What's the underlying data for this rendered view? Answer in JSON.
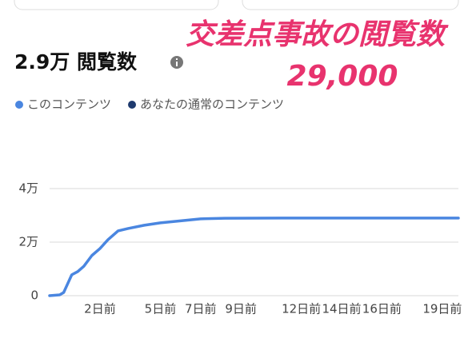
{
  "chart_data": {
    "type": "line",
    "title": "2.9万 閲覧数",
    "annotations": [
      "交差点事故の閲覧数",
      "29,000"
    ],
    "x": [
      -0.5,
      0,
      0.2,
      0.4,
      0.6,
      0.9,
      1.2,
      1.6,
      2,
      2.4,
      2.9,
      3.4,
      4.2,
      5,
      6.2,
      7,
      8.2,
      11,
      15,
      19.8
    ],
    "series": [
      {
        "name": "このコンテンツ",
        "color": "#4a86e0",
        "values": [
          0,
          300,
          1200,
          4500,
          7800,
          9000,
          11000,
          15000,
          17600,
          20900,
          24200,
          25100,
          26300,
          27200,
          28100,
          28700,
          28900,
          29000,
          29000,
          29000
        ]
      },
      {
        "name": "あなたの通常のコンテンツ",
        "color": "#1e3a6e",
        "values": [
          null,
          null,
          null,
          null,
          null,
          null,
          null,
          null,
          null,
          null,
          null,
          null,
          null,
          null,
          null,
          null,
          null,
          null,
          null,
          null
        ]
      }
    ],
    "xlim": [
      -0.5,
      19.8
    ],
    "xticks": [
      {
        "value": 2,
        "label": "2日前"
      },
      {
        "value": 5,
        "label": "5日前"
      },
      {
        "value": 7,
        "label": "7日前"
      },
      {
        "value": 9,
        "label": "9日前"
      },
      {
        "value": 12,
        "label": "12日前"
      },
      {
        "value": 14,
        "label": "14日前"
      },
      {
        "value": 16,
        "label": "16日前"
      },
      {
        "value": 19,
        "label": "19日前"
      }
    ],
    "ylim": [
      0,
      40000
    ],
    "yticks": [
      0,
      {
        "value": 20000,
        "label": "2万"
      },
      {
        "value": 40000,
        "label": "4万"
      }
    ],
    "grid": true
  }
}
